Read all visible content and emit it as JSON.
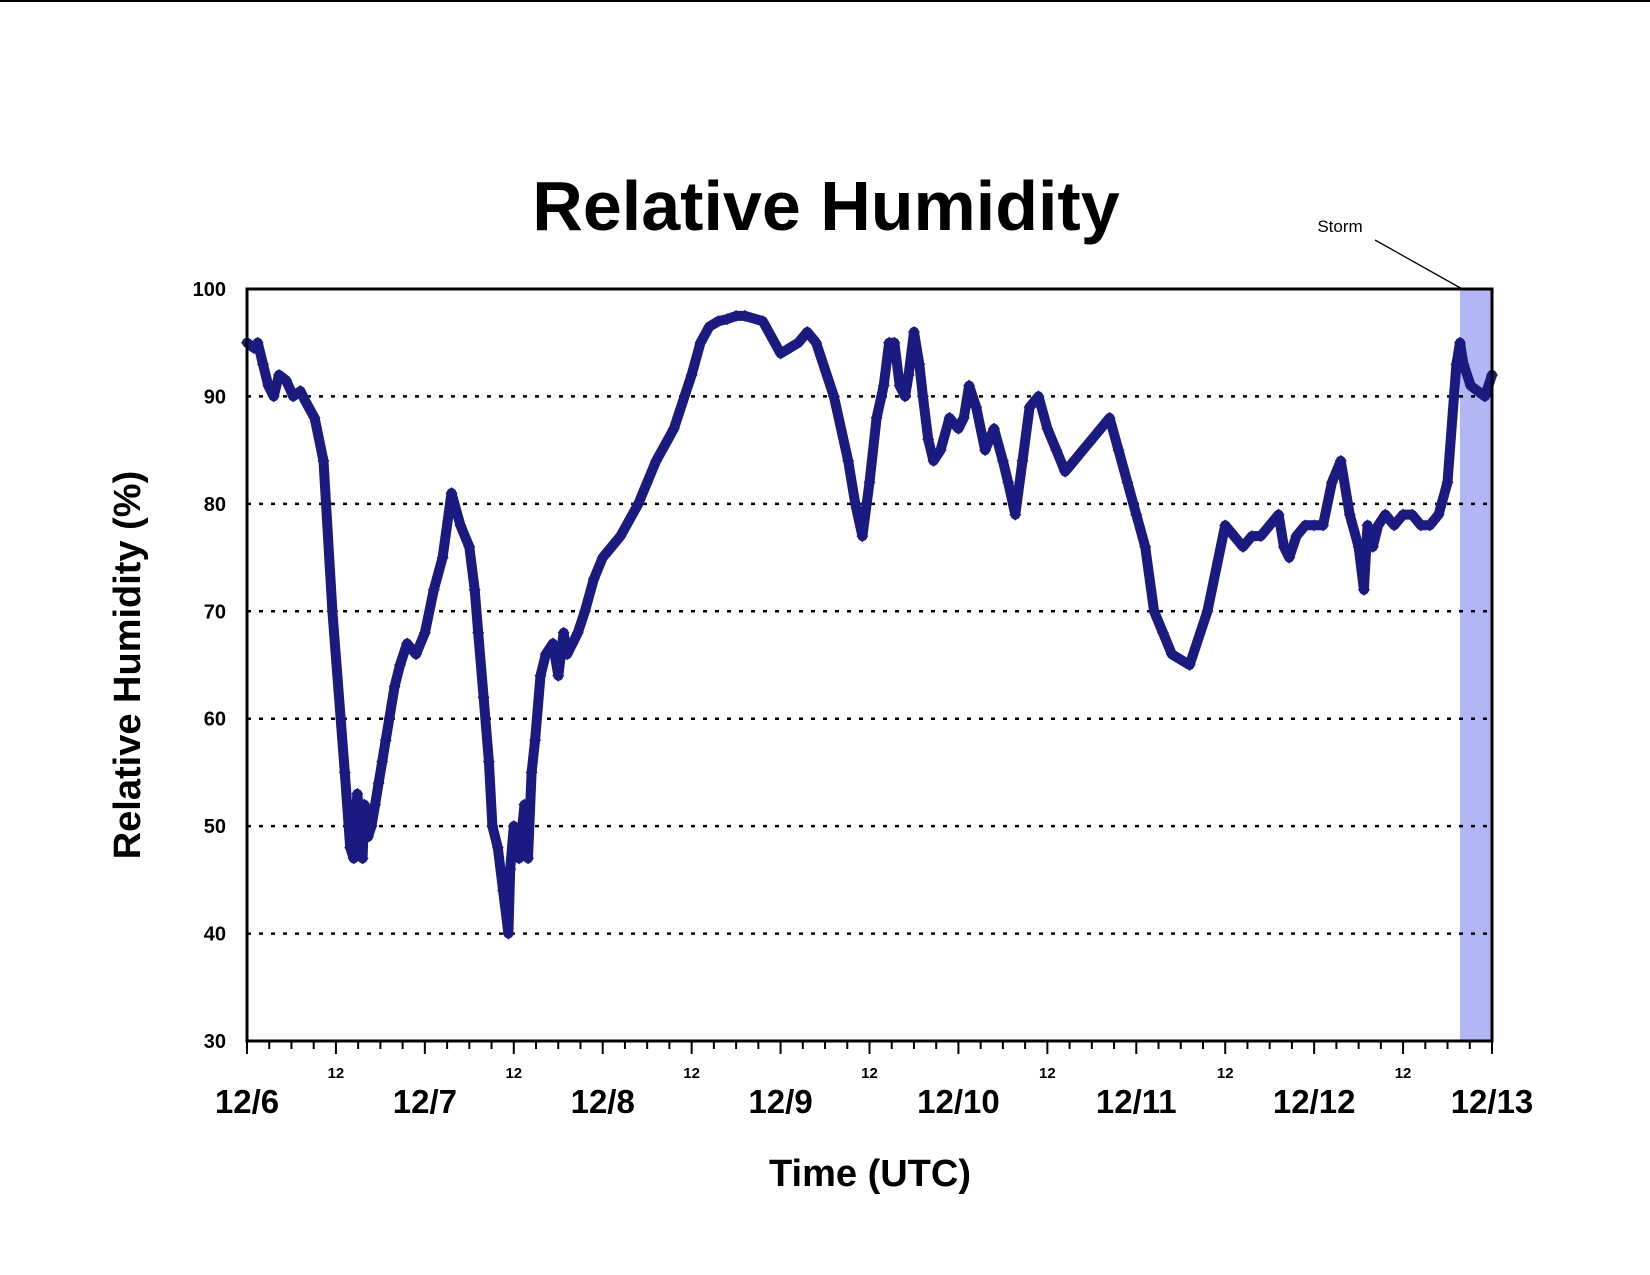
{
  "chart_data": {
    "type": "scatter",
    "title": "Relative Humidity",
    "xlabel": "Time (UTC)",
    "ylabel": "Relative Humidity (%)",
    "ylim": [
      30,
      100
    ],
    "y_ticks": [
      "30",
      "40",
      "50",
      "60",
      "70",
      "80",
      "90",
      "100"
    ],
    "x_unit": "days since 12/6 00 UTC",
    "xlim": [
      0,
      7
    ],
    "x_major_labels": [
      "12/6",
      "12/7",
      "12/8",
      "12/9",
      "12/10",
      "12/11",
      "12/12",
      "12/13"
    ],
    "x_minor_label": "12",
    "grid": "horizontal dotted at 40-90",
    "marker_color": "#1a1a80",
    "annotation": {
      "label": "Storm",
      "x_start": 6.82,
      "x_end": 7.0,
      "color": "#b3b6f4"
    },
    "series": [
      {
        "x": [
          0.0,
          0.04,
          0.06,
          0.09,
          0.12,
          0.15,
          0.18,
          0.22,
          0.26,
          0.3,
          0.33,
          0.38,
          0.43,
          0.48,
          0.55,
          0.58,
          0.6,
          0.62,
          0.64,
          0.65,
          0.66,
          0.68,
          0.7,
          0.72,
          0.74,
          0.76,
          0.78,
          0.8,
          0.83,
          0.86,
          0.9,
          0.95,
          1.0,
          1.05,
          1.1,
          1.15,
          1.2,
          1.25,
          1.28,
          1.3,
          1.33,
          1.36,
          1.38,
          1.41,
          1.44,
          1.47,
          1.48,
          1.5,
          1.53,
          1.56,
          1.58,
          1.6,
          1.62,
          1.65,
          1.68,
          1.72,
          1.75,
          1.78,
          1.8,
          1.83,
          1.86,
          1.9,
          1.95,
          2.0,
          2.1,
          2.2,
          2.3,
          2.4,
          2.5,
          2.55,
          2.6,
          2.65,
          2.7,
          2.75,
          2.8,
          2.9,
          3.0,
          3.1,
          3.15,
          3.2,
          3.3,
          3.38,
          3.42,
          3.46,
          3.5,
          3.54,
          3.58,
          3.61,
          3.64,
          3.67,
          3.7,
          3.72,
          3.75,
          3.78,
          3.8,
          3.83,
          3.86,
          3.9,
          3.95,
          4.0,
          4.03,
          4.06,
          4.1,
          4.15,
          4.2,
          4.25,
          4.28,
          4.32,
          4.36,
          4.4,
          4.45,
          4.5,
          4.55,
          4.6,
          4.65,
          4.7,
          4.75,
          4.8,
          4.85,
          4.9,
          4.95,
          5.0,
          5.05,
          5.1,
          5.15,
          5.2,
          5.3,
          5.4,
          5.5,
          5.55,
          5.6,
          5.65,
          5.7,
          5.75,
          5.8,
          5.83,
          5.86,
          5.9,
          5.95,
          6.0,
          6.05,
          6.1,
          6.15,
          6.2,
          6.25,
          6.28,
          6.3,
          6.33,
          6.36,
          6.4,
          6.45,
          6.5,
          6.55,
          6.6,
          6.65,
          6.7,
          6.75,
          6.8,
          6.82,
          6.84,
          6.88,
          6.92,
          6.96,
          7.0
        ],
        "y": [
          95.0,
          94.5,
          95.0,
          93.0,
          91.0,
          90.0,
          92.0,
          91.5,
          90.0,
          90.5,
          89.5,
          88.0,
          84.0,
          70.0,
          55.0,
          48.0,
          47.0,
          53.0,
          50.0,
          47.0,
          52.0,
          49.0,
          50.0,
          52.0,
          54.0,
          56.0,
          58.0,
          60.0,
          63.0,
          65.0,
          67.0,
          66.0,
          68.0,
          72.0,
          75.0,
          81.0,
          78.0,
          76.0,
          72.0,
          68.0,
          62.0,
          56.0,
          50.0,
          48.0,
          44.0,
          40.0,
          46.0,
          50.0,
          47.0,
          52.0,
          47.0,
          55.0,
          58.0,
          64.0,
          66.0,
          67.0,
          64.0,
          68.0,
          66.0,
          67.0,
          68.0,
          70.0,
          73.0,
          75.0,
          77.0,
          80.0,
          84.0,
          87.0,
          92.0,
          95.0,
          96.5,
          97.0,
          97.2,
          97.5,
          97.5,
          97.0,
          94.0,
          95.0,
          96.0,
          95.0,
          90.0,
          84.0,
          80.0,
          77.0,
          82.0,
          88.0,
          91.0,
          95.0,
          95.0,
          91.0,
          90.0,
          92.0,
          96.0,
          93.0,
          90.0,
          86.0,
          84.0,
          85.0,
          88.0,
          87.0,
          88.0,
          91.0,
          89.0,
          85.0,
          87.0,
          84.0,
          82.0,
          79.0,
          84.0,
          89.0,
          90.0,
          87.0,
          85.0,
          83.0,
          84.0,
          85.0,
          86.0,
          87.0,
          88.0,
          85.0,
          82.0,
          79.0,
          76.0,
          70.0,
          68.0,
          66.0,
          65.0,
          70.0,
          78.0,
          77.0,
          76.0,
          77.0,
          77.0,
          78.0,
          79.0,
          76.0,
          75.0,
          77.0,
          78.0,
          78.0,
          78.0,
          82.0,
          84.0,
          79.0,
          76.0,
          72.0,
          78.0,
          76.0,
          78.0,
          79.0,
          78.0,
          79.0,
          79.0,
          78.0,
          78.0,
          79.0,
          82.0,
          93.0,
          95.0,
          93.0,
          91.0,
          90.5,
          90.0,
          92.0
        ]
      }
    ]
  }
}
